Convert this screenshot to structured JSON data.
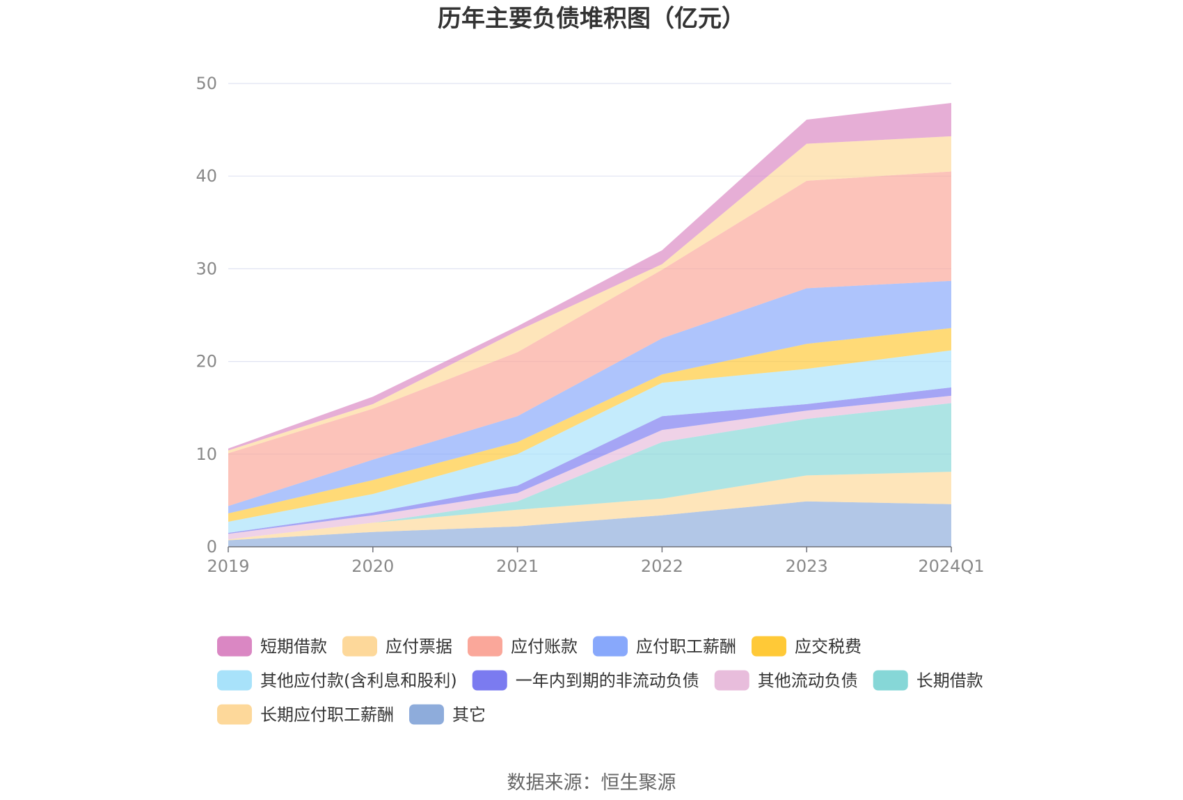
{
  "chart_data": {
    "type": "area",
    "stacked": true,
    "title": "历年主要负债堆积图（亿元）",
    "categories": [
      "2019",
      "2020",
      "2021",
      "2022",
      "2023",
      "2024Q1"
    ],
    "ylim": [
      0,
      50
    ],
    "yticks": [
      0,
      10,
      20,
      30,
      40,
      50
    ],
    "grid": true,
    "legend_position": "bottom",
    "series": [
      {
        "name": "其它",
        "color": "#8EACDB",
        "values": [
          0.7,
          1.6,
          2.2,
          3.4,
          4.9,
          4.6
        ]
      },
      {
        "name": "长期应付职工薪酬",
        "color": "#FDD89A",
        "values": [
          0.1,
          1.0,
          1.8,
          1.8,
          2.8,
          3.5
        ]
      },
      {
        "name": "长期借款",
        "color": "#86D7D7",
        "values": [
          0.0,
          0.0,
          0.9,
          6.1,
          6.1,
          7.4
        ]
      },
      {
        "name": "其他流动负债",
        "color": "#E8BDDC",
        "values": [
          0.6,
          0.8,
          0.9,
          1.3,
          0.9,
          0.8
        ]
      },
      {
        "name": "一年内到期的非流动负债",
        "color": "#7B7BF0",
        "values": [
          0.1,
          0.3,
          0.8,
          1.5,
          0.7,
          0.9
        ]
      },
      {
        "name": "其他应付款(含利息和股利)",
        "color": "#A8E2FA",
        "values": [
          1.2,
          2.0,
          3.4,
          3.6,
          3.8,
          4.0
        ]
      },
      {
        "name": "应交税费",
        "color": "#FFC937",
        "values": [
          0.9,
          1.5,
          1.3,
          0.9,
          2.7,
          2.4
        ]
      },
      {
        "name": "应付职工薪酬",
        "color": "#88A8FB",
        "values": [
          0.8,
          2.2,
          2.8,
          3.9,
          6.0,
          5.1
        ]
      },
      {
        "name": "应付账款",
        "color": "#FAA79A",
        "values": [
          5.7,
          5.5,
          6.9,
          7.4,
          11.6,
          11.8
        ]
      },
      {
        "name": "应付票据",
        "color": "#FDD89A",
        "values": [
          0.3,
          0.5,
          2.3,
          0.6,
          4.0,
          3.8
        ]
      },
      {
        "name": "短期借款",
        "color": "#DA87C3",
        "values": [
          0.2,
          0.8,
          0.5,
          1.5,
          2.6,
          3.6
        ]
      }
    ],
    "legend_order": [
      "短期借款",
      "应付票据",
      "应付账款",
      "应付职工薪酬",
      "应交税费",
      "其他应付款(含利息和股利)",
      "一年内到期的非流动负债",
      "其他流动负债",
      "长期借款",
      "长期应付职工薪酬",
      "其它"
    ]
  },
  "source": "数据来源：恒生聚源"
}
